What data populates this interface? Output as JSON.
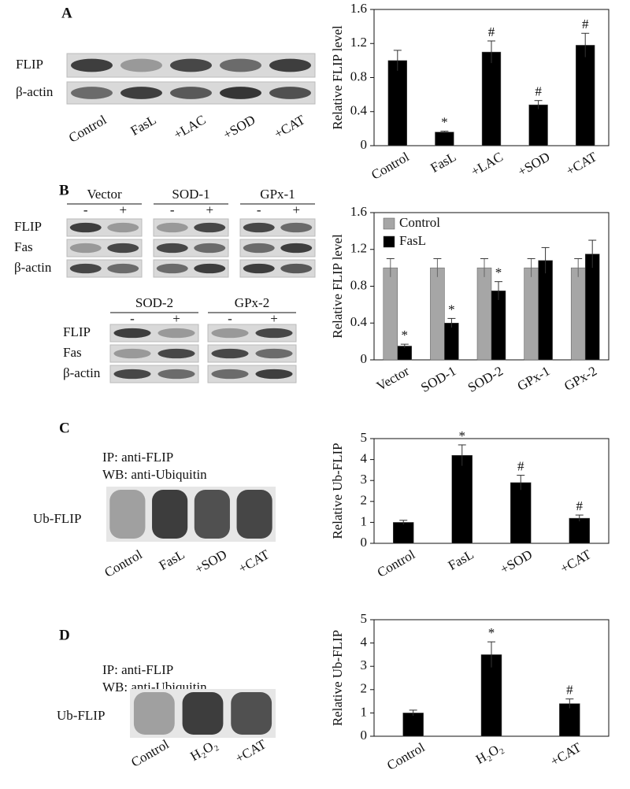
{
  "blots": {
    "A": {
      "label": "A",
      "rows": [
        "FLIP",
        "β-actin"
      ],
      "lanes": [
        "Control",
        "FasL",
        "+LAC",
        "+SOD",
        "+CAT"
      ]
    },
    "B1": {
      "label": "B",
      "rows": [
        "FLIP",
        "Fas",
        "β-actin"
      ],
      "groups": [
        {
          "name": "Vector",
          "signs": [
            "-",
            "+"
          ]
        },
        {
          "name": "SOD-1",
          "signs": [
            "-",
            "+"
          ]
        },
        {
          "name": "GPx-1",
          "signs": [
            "-",
            "+"
          ]
        }
      ]
    },
    "B2": {
      "rows": [
        "FLIP",
        "Fas",
        "β-actin"
      ],
      "groups": [
        {
          "name": "SOD-2",
          "signs": [
            "-",
            "+"
          ]
        },
        {
          "name": "GPx-2",
          "signs": [
            "-",
            "+"
          ]
        }
      ]
    },
    "C": {
      "label": "C",
      "ip": "IP: anti-FLIP",
      "wb": "WB: anti-Ubiquitin",
      "row": "Ub-FLIP",
      "lanes": [
        "Control",
        "FasL",
        "+SOD",
        "+CAT"
      ]
    },
    "D": {
      "label": "D",
      "ip": "IP: anti-FLIP",
      "wb": "WB: anti-Ubiquitin",
      "row": "Ub-FLIP",
      "lanes": [
        "Control",
        "H₂O₂",
        "+CAT"
      ]
    }
  },
  "chart_data": [
    {
      "type": "bar",
      "ylabel": "Relative FLIP level",
      "categories": [
        "Control",
        "FasL",
        "+LAC",
        "+SOD",
        "+CAT"
      ],
      "series": [
        {
          "color": "#000000",
          "values": [
            1.0,
            0.16,
            1.1,
            0.48,
            1.18
          ],
          "errors": [
            0.12,
            0.01,
            0.13,
            0.05,
            0.14
          ],
          "markers": [
            null,
            "*",
            "#",
            "#",
            "#"
          ]
        }
      ],
      "ylim": [
        0,
        1.6
      ],
      "yticks": [
        0,
        0.4,
        0.8,
        1.2,
        1.6
      ]
    },
    {
      "type": "bar",
      "ylabel": "Relative FLIP level",
      "categories": [
        "Vector",
        "SOD-1",
        "SOD-2",
        "GPx-1",
        "GPx-2"
      ],
      "series": [
        {
          "name": "Control",
          "color": "#a6a6a6",
          "values": [
            1.0,
            1.0,
            1.0,
            1.0,
            1.0
          ],
          "errors": [
            0.1,
            0.1,
            0.1,
            0.1,
            0.1
          ]
        },
        {
          "name": "FasL",
          "color": "#000000",
          "values": [
            0.15,
            0.4,
            0.75,
            1.08,
            1.15
          ],
          "errors": [
            0.02,
            0.05,
            0.1,
            0.14,
            0.15
          ],
          "markers": [
            "*",
            "*",
            "*",
            null,
            null
          ]
        }
      ],
      "ylim": [
        0,
        1.6
      ],
      "yticks": [
        0,
        0.4,
        0.8,
        1.2,
        1.6
      ],
      "legend": "top-left"
    },
    {
      "type": "bar",
      "ylabel": "Relative Ub-FLIP",
      "categories": [
        "Control",
        "FasL",
        "+SOD",
        "+CAT"
      ],
      "series": [
        {
          "color": "#000000",
          "values": [
            1.0,
            4.2,
            2.9,
            1.2
          ],
          "errors": [
            0.1,
            0.5,
            0.35,
            0.15
          ],
          "markers": [
            null,
            "*",
            "#",
            "#"
          ]
        }
      ],
      "ylim": [
        0,
        5
      ],
      "yticks": [
        0,
        1,
        2,
        3,
        4,
        5
      ]
    },
    {
      "type": "bar",
      "ylabel": "Relative Ub-FLIP",
      "categories": [
        "Control",
        "H₂O₂",
        "+CAT"
      ],
      "series": [
        {
          "color": "#000000",
          "values": [
            1.0,
            3.5,
            1.4
          ],
          "errors": [
            0.12,
            0.55,
            0.2
          ],
          "markers": [
            null,
            "*",
            "#"
          ]
        }
      ],
      "ylim": [
        0,
        5
      ],
      "yticks": [
        0,
        1,
        2,
        3,
        4,
        5
      ]
    }
  ]
}
